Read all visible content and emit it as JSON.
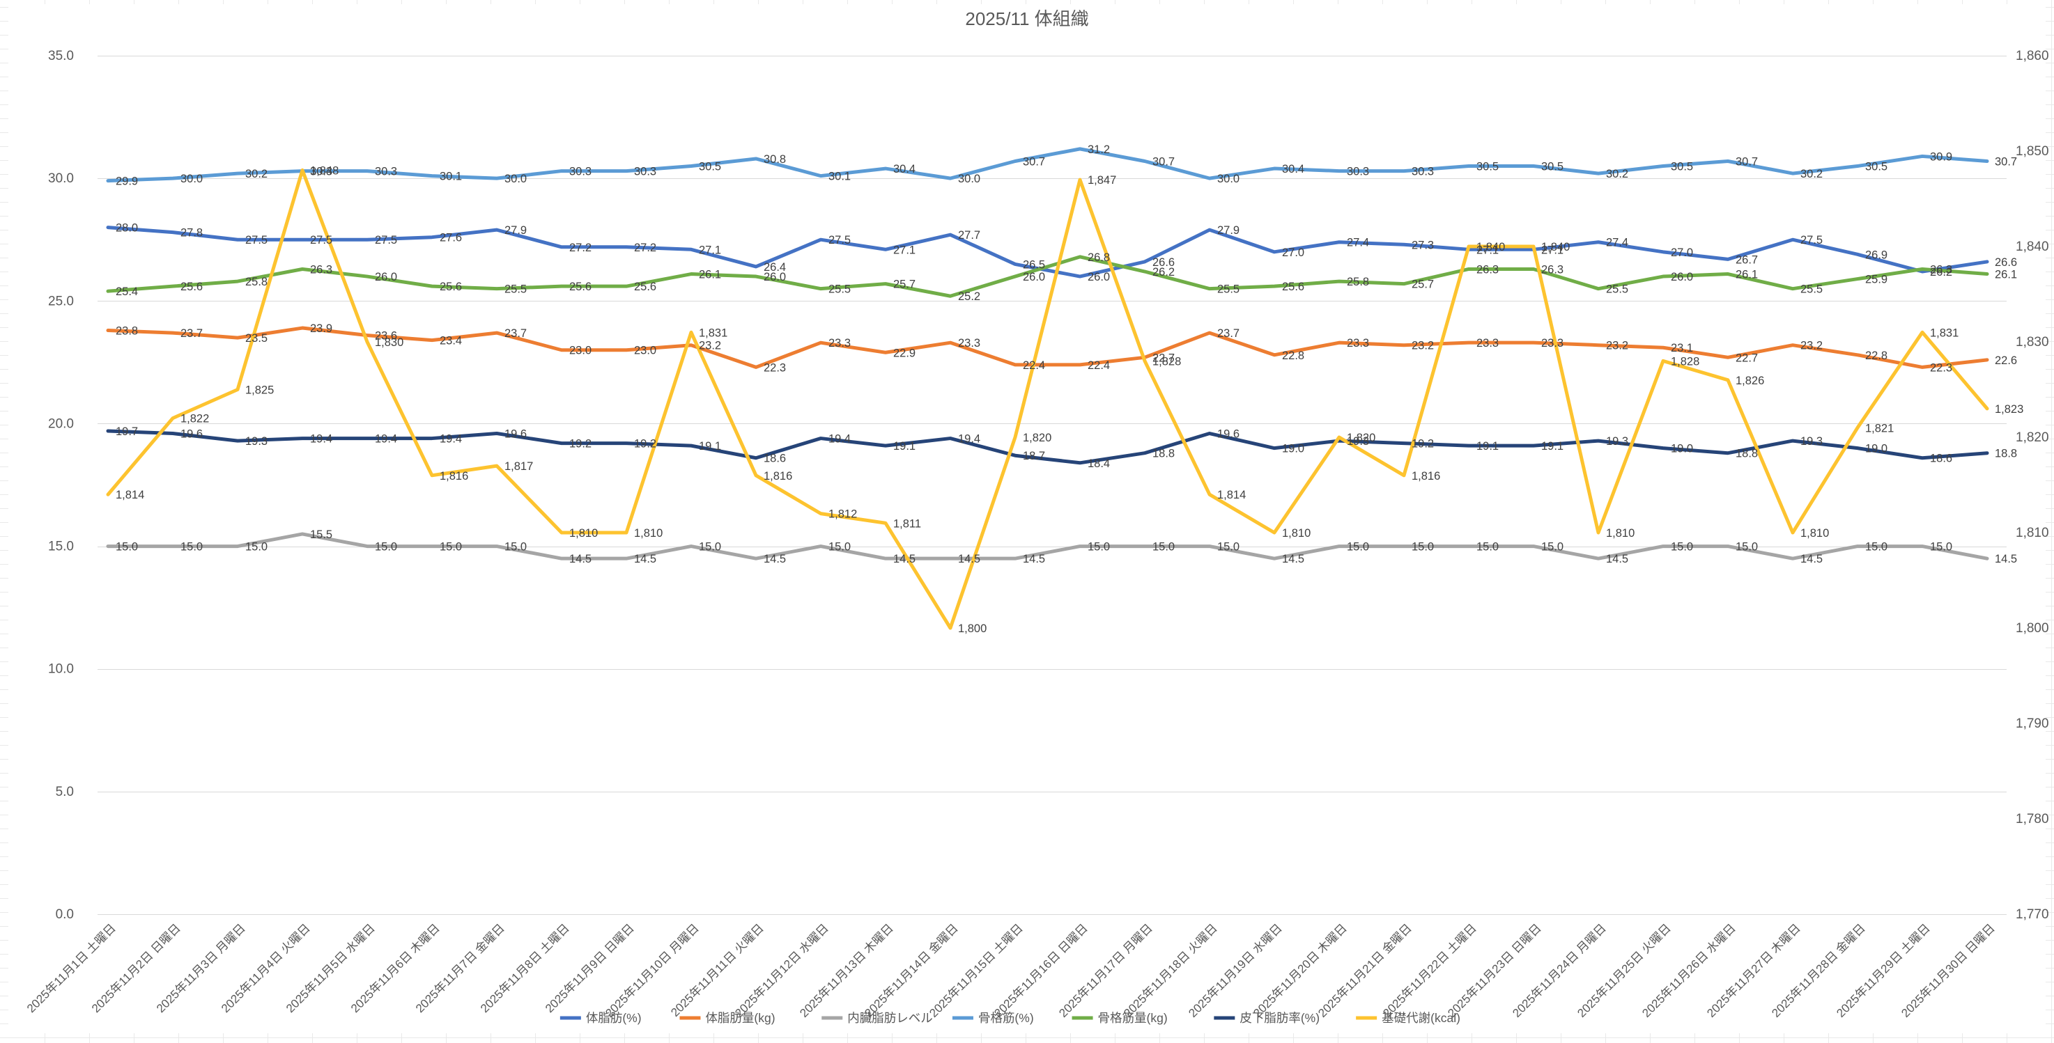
{
  "window": {
    "title": "2025/11 体組織"
  },
  "chart_data": {
    "type": "line",
    "title": "2025/11 体組織",
    "legend_position": "bottom",
    "grid": true,
    "categories": [
      "2025年11月1日 土曜日",
      "2025年11月2日 日曜日",
      "2025年11月3日 月曜日",
      "2025年11月4日 火曜日",
      "2025年11月5日 水曜日",
      "2025年11月6日 木曜日",
      "2025年11月7日 金曜日",
      "2025年11月8日 土曜日",
      "2025年11月9日 日曜日",
      "2025年11月10日 月曜日",
      "2025年11月11日 火曜日",
      "2025年11月12日 水曜日",
      "2025年11月13日 木曜日",
      "2025年11月14日 金曜日",
      "2025年11月15日 土曜日",
      "2025年11月16日 日曜日",
      "2025年11月17日 月曜日",
      "2025年11月18日 火曜日",
      "2025年11月19日 水曜日",
      "2025年11月20日 木曜日",
      "2025年11月21日 金曜日",
      "2025年11月22日 土曜日",
      "2025年11月23日 日曜日",
      "2025年11月24日 月曜日",
      "2025年11月25日 火曜日",
      "2025年11月26日 水曜日",
      "2025年11月27日 木曜日",
      "2025年11月28日 金曜日",
      "2025年11月29日 土曜日",
      "2025年11月30日 日曜日"
    ],
    "left_axis": {
      "min": 0,
      "max": 35,
      "step": 5,
      "labels": [
        "35.0",
        "30.0",
        "25.0",
        "20.0",
        "15.0",
        "10.0",
        "5.0",
        "0.0"
      ]
    },
    "right_axis": {
      "min": 1770,
      "max": 1860,
      "step": 10,
      "labels": [
        "1,860",
        "1,850",
        "1,840",
        "1,830",
        "1,820",
        "1,810",
        "1,800",
        "1,790",
        "1,780",
        "1,770"
      ]
    },
    "series": [
      {
        "name": "体脂肪(%)",
        "color": "#4472C4",
        "axis": "left",
        "decimals": 1,
        "values": [
          28.0,
          27.8,
          27.5,
          27.5,
          27.5,
          27.6,
          27.9,
          27.2,
          27.2,
          27.1,
          26.4,
          27.5,
          27.1,
          27.7,
          26.5,
          26.0,
          26.6,
          27.9,
          27.0,
          27.4,
          27.3,
          27.1,
          27.1,
          27.4,
          27.0,
          26.7,
          27.5,
          26.9,
          26.2,
          26.6
        ]
      },
      {
        "name": "体脂肪量(kg)",
        "color": "#ED7D31",
        "axis": "left",
        "decimals": 1,
        "values": [
          23.8,
          23.7,
          23.5,
          23.9,
          23.6,
          23.4,
          23.7,
          23.0,
          23.0,
          23.2,
          22.3,
          23.3,
          22.9,
          23.3,
          22.4,
          22.4,
          22.7,
          23.7,
          22.8,
          23.3,
          23.2,
          23.3,
          23.3,
          23.2,
          23.1,
          22.7,
          23.2,
          22.8,
          22.3,
          22.6
        ]
      },
      {
        "name": "内臓脂肪レベル",
        "color": "#A5A5A5",
        "axis": "left",
        "decimals": 1,
        "values": [
          15.0,
          15.0,
          15.0,
          15.5,
          15.0,
          15.0,
          15.0,
          14.5,
          14.5,
          15.0,
          14.5,
          15.0,
          14.5,
          14.5,
          14.5,
          15.0,
          15.0,
          15.0,
          14.5,
          15.0,
          15.0,
          15.0,
          15.0,
          14.5,
          15.0,
          15.0,
          14.5,
          15.0,
          15.0,
          14.5
        ]
      },
      {
        "name": "骨格筋(%)",
        "color": "#5B9BD5",
        "axis": "left",
        "decimals": 1,
        "values": [
          29.9,
          30.0,
          30.2,
          30.3,
          30.3,
          30.1,
          30.0,
          30.3,
          30.3,
          30.5,
          30.8,
          30.1,
          30.4,
          30.0,
          30.7,
          31.2,
          30.7,
          30.0,
          30.4,
          30.3,
          30.3,
          30.5,
          30.5,
          30.2,
          30.5,
          30.7,
          30.2,
          30.5,
          30.9,
          30.7
        ]
      },
      {
        "name": "骨格筋量(kg)",
        "color": "#70AD47",
        "axis": "left",
        "decimals": 1,
        "values": [
          25.4,
          25.6,
          25.8,
          26.3,
          26.0,
          25.6,
          25.5,
          25.6,
          25.6,
          26.1,
          26.0,
          25.5,
          25.7,
          25.2,
          26.0,
          26.8,
          26.2,
          25.5,
          25.6,
          25.8,
          25.7,
          26.3,
          26.3,
          25.5,
          26.0,
          26.1,
          25.5,
          25.9,
          26.3,
          26.1
        ]
      },
      {
        "name": "皮下脂肪率(%)",
        "color": "#264478",
        "axis": "left",
        "decimals": 1,
        "values": [
          19.7,
          19.6,
          19.3,
          19.4,
          19.4,
          19.4,
          19.6,
          19.2,
          19.2,
          19.1,
          18.6,
          19.4,
          19.1,
          19.4,
          18.7,
          18.4,
          18.8,
          19.6,
          19.0,
          19.3,
          19.2,
          19.1,
          19.1,
          19.3,
          19.0,
          18.8,
          19.3,
          19.0,
          18.6,
          18.8
        ]
      },
      {
        "name": "基礎代謝(kcal)",
        "color": "#FDC32F",
        "axis": "right",
        "decimals": 0,
        "values": [
          1814,
          1822,
          1825,
          1848,
          1830,
          1816,
          1817,
          1810,
          1810,
          1831,
          1816,
          1812,
          1811,
          1800,
          1820,
          1847,
          1828,
          1814,
          1810,
          1820,
          1816,
          1840,
          1840,
          1810,
          1828,
          1826,
          1810,
          1821,
          1831,
          1823
        ]
      }
    ],
    "colors": {
      "axis_text": "#595959",
      "data_label_text": "#404040",
      "gridline": "#D9D9D9",
      "worksheet_gridline": "#E9E9E9",
      "title_text": "#595959"
    }
  }
}
